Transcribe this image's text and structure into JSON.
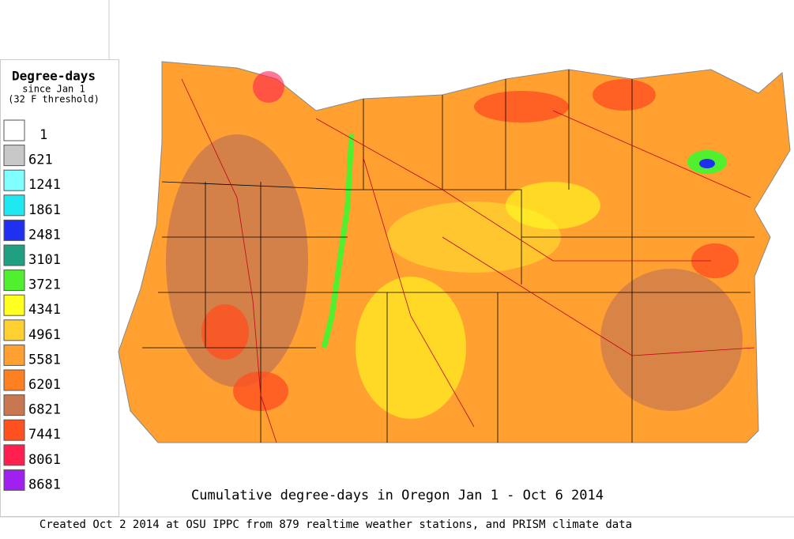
{
  "legend": {
    "title": "Degree-days",
    "subtitle": "since Jan 1",
    "note": "(32 F threshold)",
    "items": [
      {
        "label": 1,
        "color": "#ffffff"
      },
      {
        "label": 621,
        "color": "#c8c8c8"
      },
      {
        "label": 1241,
        "color": "#80ffff"
      },
      {
        "label": 1861,
        "color": "#20e8f0"
      },
      {
        "label": 2481,
        "color": "#2030f0"
      },
      {
        "label": 3101,
        "color": "#20a080"
      },
      {
        "label": 3721,
        "color": "#50f030"
      },
      {
        "label": 4341,
        "color": "#ffff20"
      },
      {
        "label": 4961,
        "color": "#ffd030"
      },
      {
        "label": 5581,
        "color": "#ffa030"
      },
      {
        "label": 6201,
        "color": "#ff8020"
      },
      {
        "label": 6821,
        "color": "#c87850"
      },
      {
        "label": 7441,
        "color": "#ff5020"
      },
      {
        "label": 8061,
        "color": "#ff2050"
      },
      {
        "label": 8681,
        "color": "#a020f0"
      }
    ]
  },
  "map": {
    "title": "Cumulative degree-days in Oregon  Jan 1 - Oct 6 2014"
  },
  "footer": "Created Oct 2 2014 at OSU IPPC from 879 realtime weather stations, and PRISM climate data"
}
